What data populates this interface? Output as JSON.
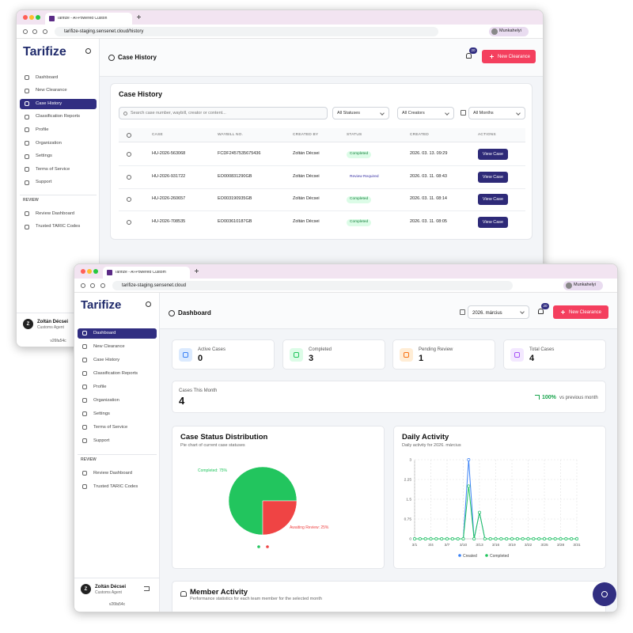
{
  "back": {
    "tab_title": "Tarifize - AI-Powered Custon",
    "url": "tarifize-staging.sensenet.cloud/history",
    "profile_label": "Munkahelyi",
    "logo": "Tarifize",
    "nav": [
      "Dashboard",
      "New Clearance",
      "Case History",
      "Classification Reports",
      "Profile",
      "Organization",
      "Settings",
      "Terms of Service",
      "Support"
    ],
    "review_label": "REVIEW",
    "review_nav": [
      "Review Dashboard",
      "Trusted TARIC Codes"
    ],
    "user_initial": "Z",
    "user_name": "Zoltán Décsei",
    "user_role": "Customs Agent",
    "version": "v26fa54c",
    "page_title": "Case History",
    "notification_count": 20,
    "new_button": "New Clearance",
    "card_title": "Case History",
    "search_placeholder": "Search case number, waybill, creator or content...",
    "filters": [
      "All Statuses",
      "All Creators",
      "All Months"
    ],
    "columns": [
      "CASE",
      "WAYBILL NO.",
      "CREATED BY",
      "STATUS",
      "CREATED",
      "ACTIONS"
    ],
    "rows": [
      [
        "HU-2026-563068",
        "FCDF2457535675436",
        "Zoltán Décsei",
        "Completed",
        "2026. 03. 13. 09:29",
        "View Case"
      ],
      [
        "HU-2026-931722",
        "EO000831290GB",
        "Zoltán Décsei",
        "Review Required",
        "2026. 03. 11. 08:43",
        "View Case"
      ],
      [
        "HU-2026-260657",
        "EO003190935GB",
        "Zoltán Décsei",
        "Completed",
        "2026. 03. 11. 08:14",
        "View Case"
      ],
      [
        "HU-2026-708535",
        "EO003610187GB",
        "Zoltán Décsei",
        "Completed",
        "2026. 03. 11. 08:05",
        "View Case"
      ]
    ]
  },
  "front": {
    "tab_title": "Tarifize - AI-Powered Custom",
    "url": "tarifize-staging.sensenet.cloud",
    "profile_label": "Munkahelyi",
    "logo": "Tarifize",
    "nav": [
      "Dashboard",
      "New Clearance",
      "Case History",
      "Classification Reports",
      "Profile",
      "Organization",
      "Settings",
      "Terms of Service",
      "Support"
    ],
    "review_label": "REVIEW",
    "review_nav": [
      "Review Dashboard",
      "Trusted TARIC Codes"
    ],
    "user_initial": "Z",
    "user_name": "Zoltán Décsei",
    "user_role": "Customs Agent",
    "version": "v26fa54c",
    "page_title": "Dashboard",
    "month": "2026. március",
    "notification_count": 20,
    "new_button": "New Clearance",
    "stats": [
      {
        "label": "Active Cases",
        "value": 0
      },
      {
        "label": "Completed",
        "value": 3
      },
      {
        "label": "Pending Review",
        "value": 1
      },
      {
        "label": "Total Cases",
        "value": 4
      }
    ],
    "month_cases": {
      "label": "Cases This Month",
      "value": 4,
      "change": "100%",
      "change_note": "vs previous month"
    },
    "pie_chart": {
      "type": "pie",
      "title": "Case Status Distribution",
      "subtitle": "Pie chart of current case statuses",
      "values": [
        75,
        25
      ],
      "value_labels": [
        "Completed: 75%",
        "Awaiting Review: 25%"
      ],
      "colors": [
        "#22c55e",
        "#ef4444"
      ]
    },
    "line_chart": {
      "type": "line",
      "title": "Daily Activity",
      "subtitle": "Daily activity for 2026. március",
      "categories": [
        "3/1",
        null,
        null,
        "3/4",
        null,
        null,
        "3/7",
        null,
        null,
        "3/10",
        null,
        null,
        "3/13",
        null,
        null,
        "3/16",
        null,
        null,
        "3/19",
        null,
        null,
        "3/22",
        null,
        null,
        "3/25",
        null,
        null,
        "3/28",
        null,
        null,
        "3/31"
      ],
      "series": [
        {
          "name": "Created",
          "color": "#3b82f6",
          "values": [
            0,
            0,
            0,
            0,
            0,
            0,
            0,
            0,
            0,
            0,
            3,
            0,
            1,
            0,
            0,
            0,
            0,
            0,
            0,
            0,
            0,
            0,
            0,
            0,
            0,
            0,
            0,
            0,
            0,
            0,
            0
          ]
        },
        {
          "name": "Completed",
          "color": "#22c55e",
          "values": [
            0,
            0,
            0,
            0,
            0,
            0,
            0,
            0,
            0,
            0,
            2,
            0,
            1,
            0,
            0,
            0,
            0,
            0,
            0,
            0,
            0,
            0,
            0,
            0,
            0,
            0,
            0,
            0,
            0,
            0,
            0
          ]
        }
      ],
      "ylim": [
        0,
        3
      ],
      "yticks": [
        0,
        0.75,
        1.5,
        2.25,
        3
      ],
      "grid": true
    },
    "member_title": "Member Activity",
    "member_subtitle": "Performance statistics for each team member for the selected month"
  }
}
